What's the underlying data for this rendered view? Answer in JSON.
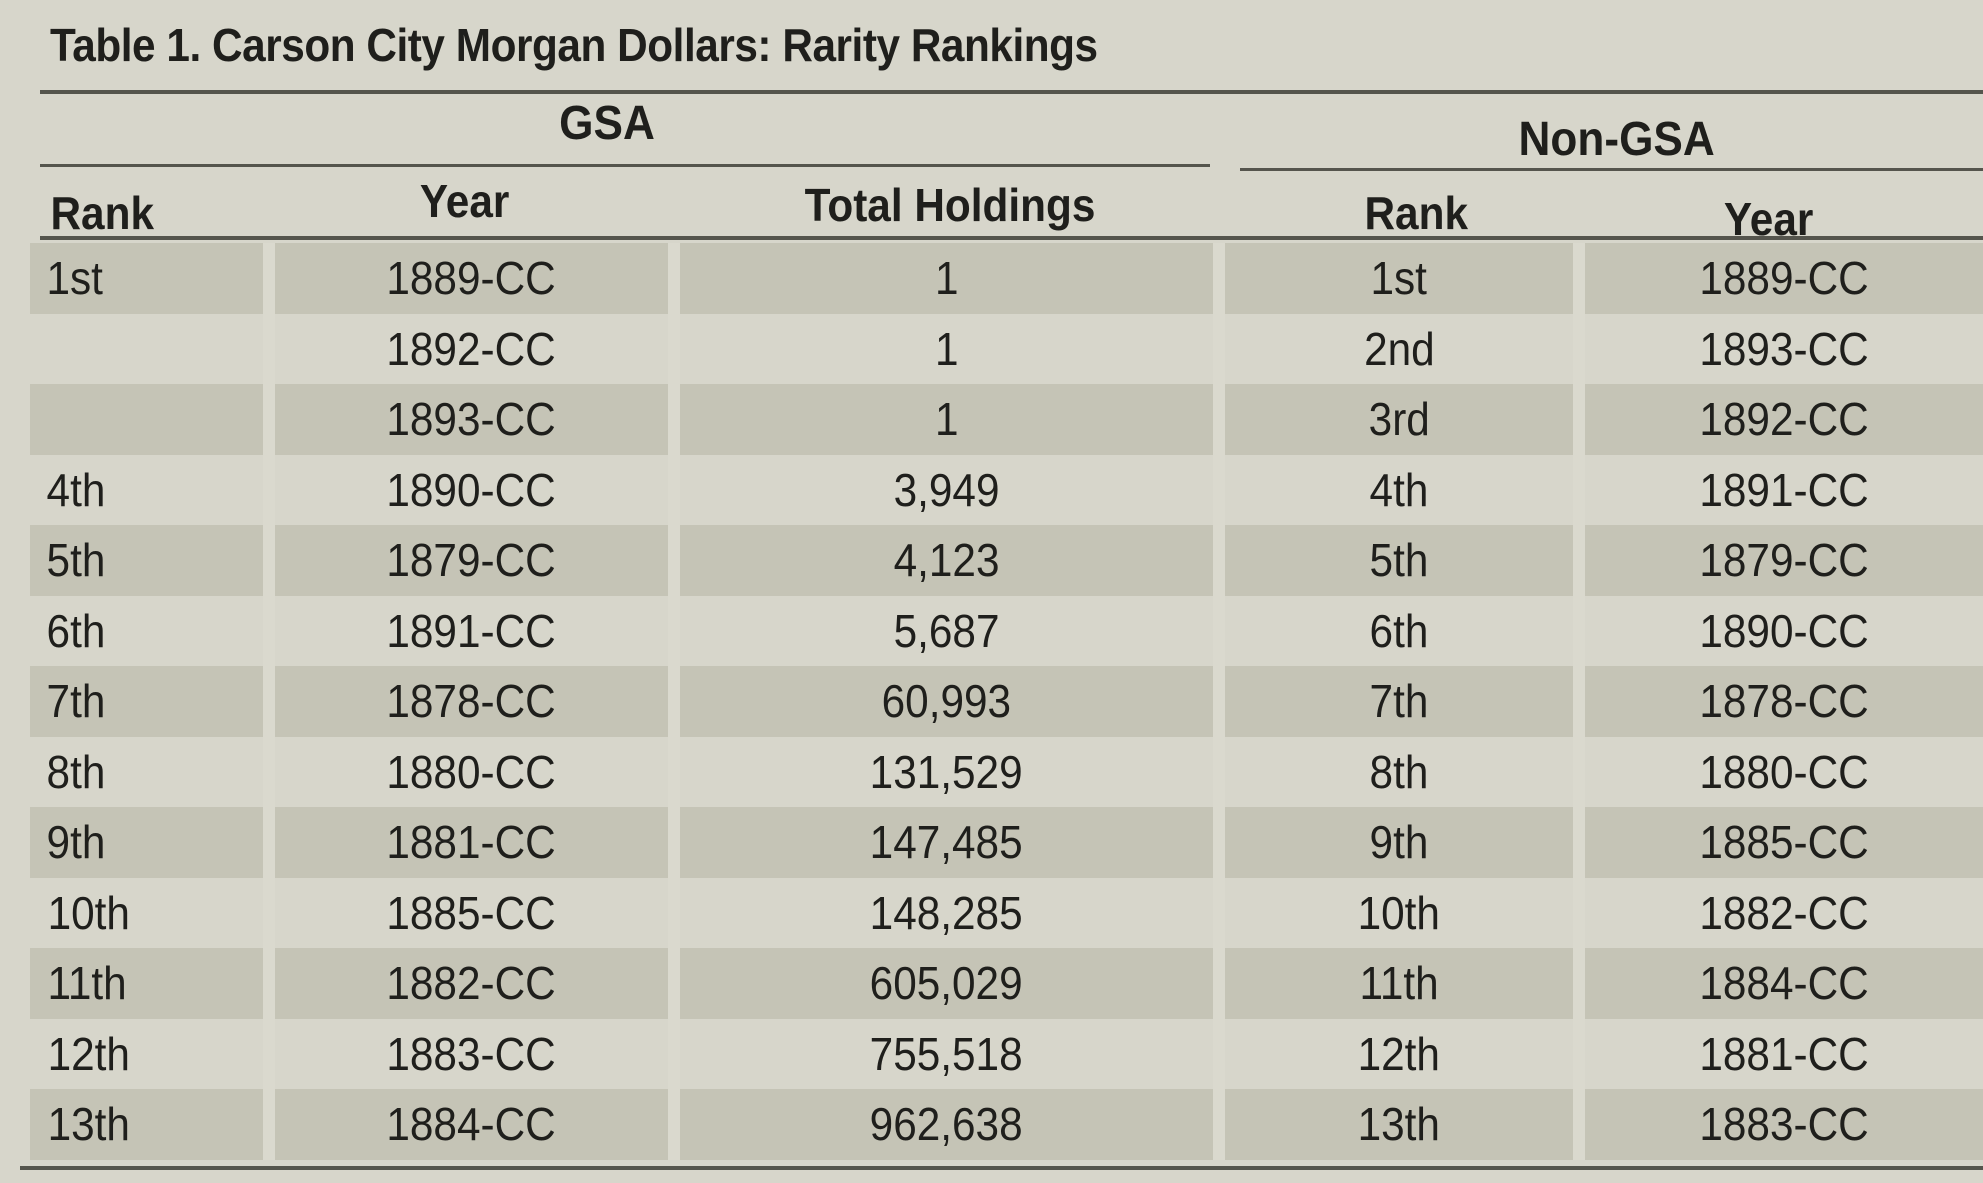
{
  "title": "Table 1. Carson City Morgan Dollars: Rarity Rankings",
  "groups": {
    "gsa": "GSA",
    "non_gsa": "Non-GSA"
  },
  "columns": {
    "gsa_rank": "Rank",
    "gsa_year": "Year",
    "gsa_total": "Total Holdings",
    "non_rank": "Rank",
    "non_year": "Year"
  },
  "rows": [
    {
      "gsa_rank": "1st",
      "gsa_year": "1889-CC",
      "total": "1",
      "non_rank": "1st",
      "non_year": "1889-CC"
    },
    {
      "gsa_rank": "",
      "gsa_year": "1892-CC",
      "total": "1",
      "non_rank": "2nd",
      "non_year": "1893-CC"
    },
    {
      "gsa_rank": "",
      "gsa_year": "1893-CC",
      "total": "1",
      "non_rank": "3rd",
      "non_year": "1892-CC"
    },
    {
      "gsa_rank": "4th",
      "gsa_year": "1890-CC",
      "total": "3,949",
      "non_rank": "4th",
      "non_year": "1891-CC"
    },
    {
      "gsa_rank": "5th",
      "gsa_year": "1879-CC",
      "total": "4,123",
      "non_rank": "5th",
      "non_year": "1879-CC"
    },
    {
      "gsa_rank": "6th",
      "gsa_year": "1891-CC",
      "total": "5,687",
      "non_rank": "6th",
      "non_year": "1890-CC"
    },
    {
      "gsa_rank": "7th",
      "gsa_year": "1878-CC",
      "total": "60,993",
      "non_rank": "7th",
      "non_year": "1878-CC"
    },
    {
      "gsa_rank": "8th",
      "gsa_year": "1880-CC",
      "total": "131,529",
      "non_rank": "8th",
      "non_year": "1880-CC"
    },
    {
      "gsa_rank": "9th",
      "gsa_year": "1881-CC",
      "total": "147,485",
      "non_rank": "9th",
      "non_year": "1885-CC"
    },
    {
      "gsa_rank": "10th",
      "gsa_year": "1885-CC",
      "total": "148,285",
      "non_rank": "10th",
      "non_year": "1882-CC"
    },
    {
      "gsa_rank": "11th",
      "gsa_year": "1882-CC",
      "total": "605,029",
      "non_rank": "11th",
      "non_year": "1884-CC"
    },
    {
      "gsa_rank": "12th",
      "gsa_year": "1883-CC",
      "total": "755,518",
      "non_rank": "12th",
      "non_year": "1881-CC"
    },
    {
      "gsa_rank": "13th",
      "gsa_year": "1884-CC",
      "total": "962,638",
      "non_rank": "13th",
      "non_year": "1883-CC"
    }
  ]
}
